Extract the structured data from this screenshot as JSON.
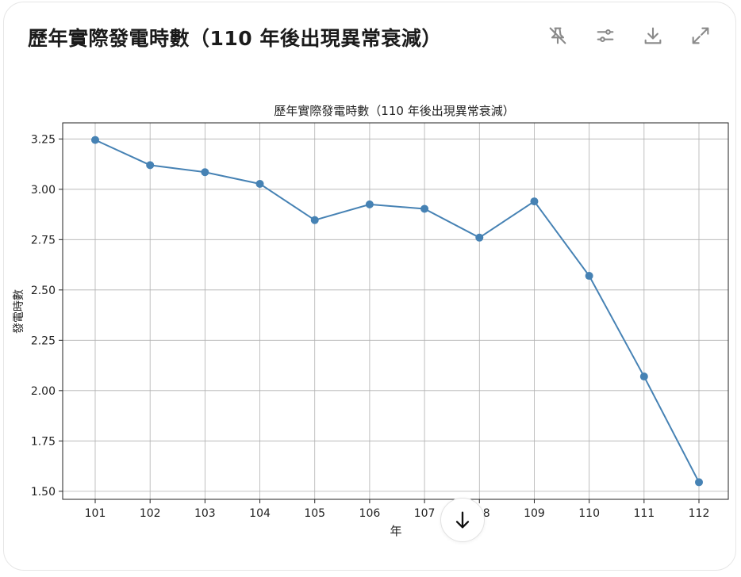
{
  "card": {
    "title": "歷年實際發電時數（110 年後出現異常衰減）"
  },
  "toolbar": {
    "icons": [
      "pin-off-icon",
      "sliders-icon",
      "download-icon",
      "expand-icon"
    ]
  },
  "colors": {
    "line": "#4682b4",
    "grid": "#b0b0b0",
    "axis": "#222222",
    "text": "#222222"
  },
  "chart_data": {
    "type": "line",
    "title": "歷年實際發電時數（110 年後出現異常衰減）",
    "xlabel": "年",
    "ylabel": "發電時數",
    "x": [
      "101",
      "102",
      "103",
      "104",
      "105",
      "106",
      "107",
      "108",
      "109",
      "110",
      "111",
      "112"
    ],
    "series": [
      {
        "values": [
          3.245,
          3.12,
          3.085,
          3.027,
          2.847,
          2.925,
          2.903,
          2.76,
          2.94,
          2.57,
          2.07,
          1.545
        ]
      }
    ],
    "yticks": [
      "1.50",
      "1.75",
      "2.00",
      "2.25",
      "2.50",
      "2.75",
      "3.00",
      "3.25"
    ],
    "ylim": [
      1.46,
      3.33
    ],
    "grid": true,
    "marker": "circle"
  }
}
